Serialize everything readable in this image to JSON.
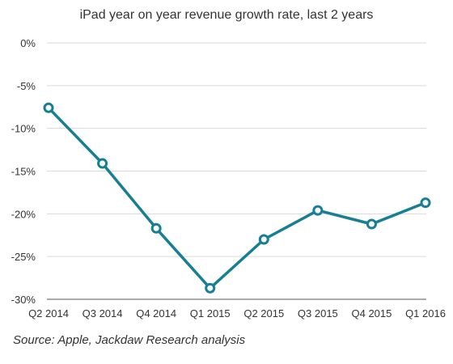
{
  "chart_data": {
    "type": "line",
    "title": "iPad year on year revenue growth rate, last 2 years",
    "xlabel": "",
    "ylabel": "",
    "categories": [
      "Q2 2014",
      "Q3 2014",
      "Q4 2014",
      "Q1 2015",
      "Q2 2015",
      "Q3 2015",
      "Q4 2015",
      "Q1 2016"
    ],
    "series": [
      {
        "values": [
          -7.6,
          -14.1,
          -21.7,
          -28.7,
          -23.0,
          -19.6,
          -21.2,
          -18.7
        ]
      }
    ],
    "ylim": [
      -30,
      0
    ],
    "yticks": [
      0,
      -5,
      -10,
      -15,
      -20,
      -25,
      -30
    ],
    "ytick_labels": [
      "0%",
      "-5%",
      "-10%",
      "-15%",
      "-20%",
      "-25%",
      "-30%"
    ],
    "grid": "horizontal",
    "legend": "none",
    "line_color": "#177f94",
    "source": "Source: Apple, Jackdaw Research analysis"
  }
}
